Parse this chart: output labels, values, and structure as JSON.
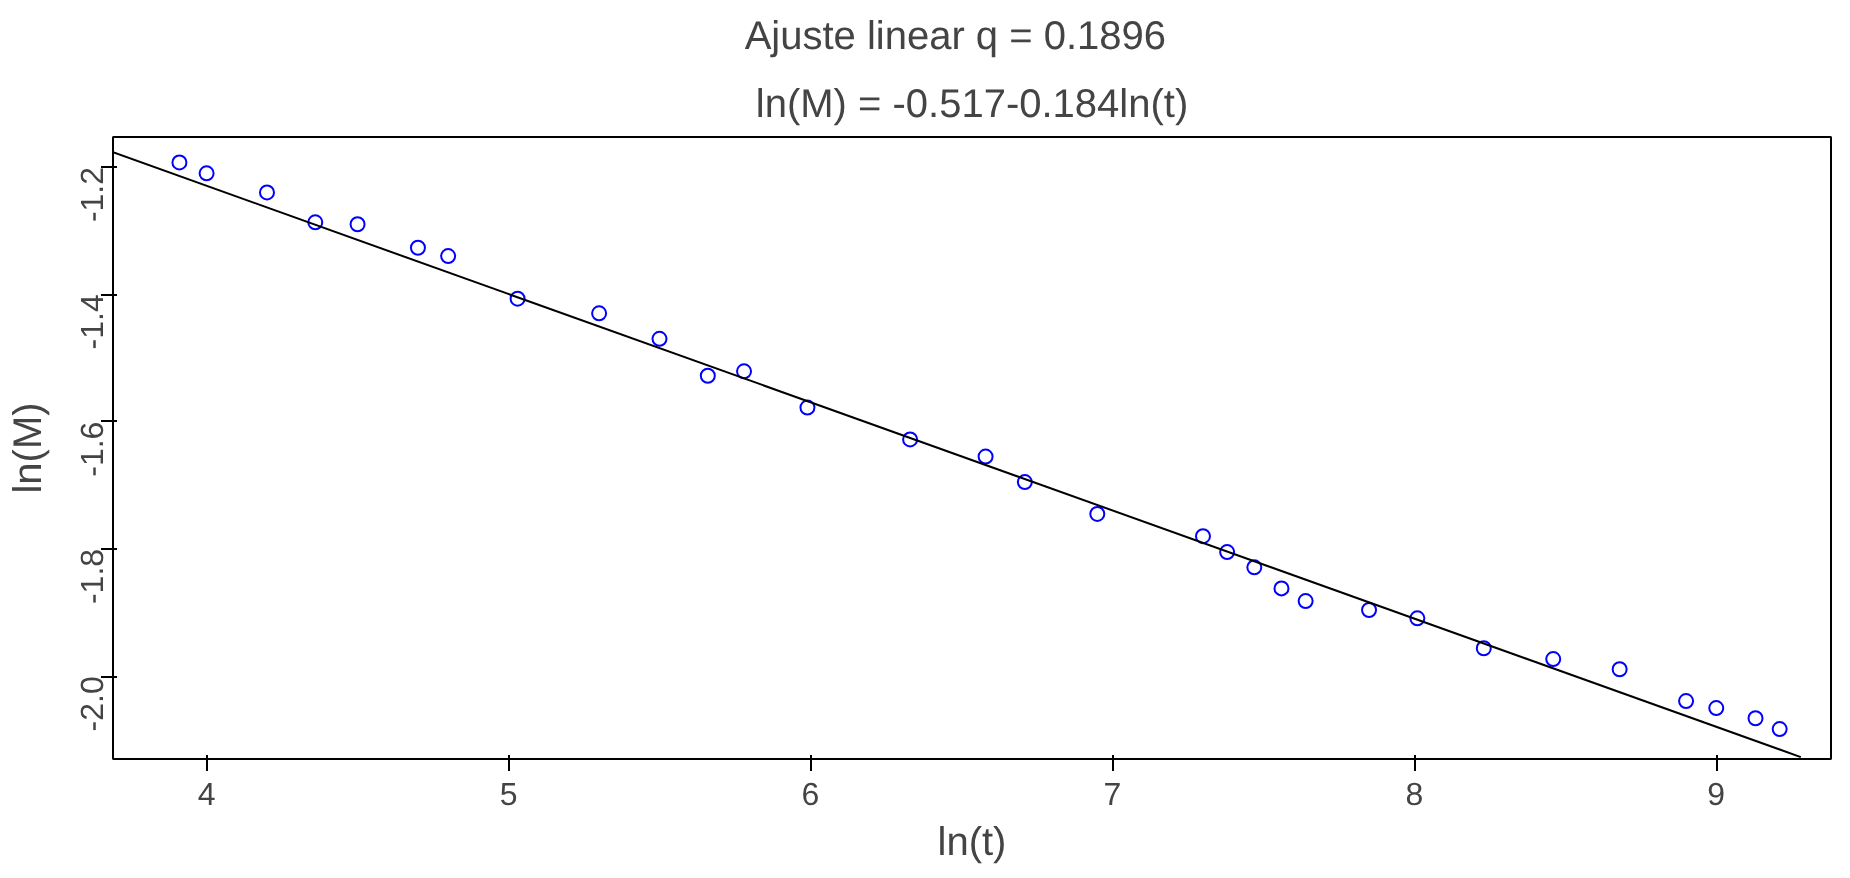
{
  "chart_data": {
    "type": "scatter",
    "title": "Ajuste linear    q = 0.1896",
    "subtitle": "ln(M) = -0.517-0.184ln(t)",
    "xlabel": "ln(t)",
    "ylabel": "ln(M)",
    "xlim": [
      3.69,
      9.38
    ],
    "ylim": [
      -2.13,
      -1.153
    ],
    "xticks": [
      4,
      5,
      6,
      7,
      8,
      9
    ],
    "yticks": [
      {
        "value": -2.0,
        "label": "-2.0"
      },
      {
        "value": -1.8,
        "label": "-1.8"
      },
      {
        "value": -1.6,
        "label": "-1.6"
      },
      {
        "value": -1.4,
        "label": "-1.4"
      },
      {
        "value": -1.2,
        "label": "-1.2"
      }
    ],
    "grid": false,
    "series": [
      {
        "marker": "circle",
        "color": "#0000ff",
        "x": [
          3.91,
          4.0,
          4.2,
          4.36,
          4.5,
          4.7,
          4.8,
          5.03,
          5.3,
          5.5,
          5.66,
          5.78,
          5.99,
          6.33,
          6.58,
          6.71,
          6.95,
          7.3,
          7.38,
          7.47,
          7.56,
          7.64,
          7.85,
          8.01,
          8.23,
          8.46,
          8.68,
          8.9,
          9.0,
          9.13,
          9.21
        ],
        "values": [
          -1.193,
          -1.21,
          -1.24,
          -1.287,
          -1.29,
          -1.327,
          -1.34,
          -1.407,
          -1.43,
          -1.47,
          -1.528,
          -1.521,
          -1.578,
          -1.628,
          -1.655,
          -1.695,
          -1.745,
          -1.78,
          -1.805,
          -1.829,
          -1.862,
          -1.882,
          -1.896,
          -1.909,
          -1.956,
          -1.973,
          -1.989,
          -2.039,
          -2.05,
          -2.066,
          -2.083
        ]
      },
      {
        "type": "line",
        "color": "#000000",
        "line_style": "solid",
        "x": [
          3.69,
          9.28
        ],
        "values": [
          -1.177,
          -2.127
        ]
      }
    ]
  }
}
